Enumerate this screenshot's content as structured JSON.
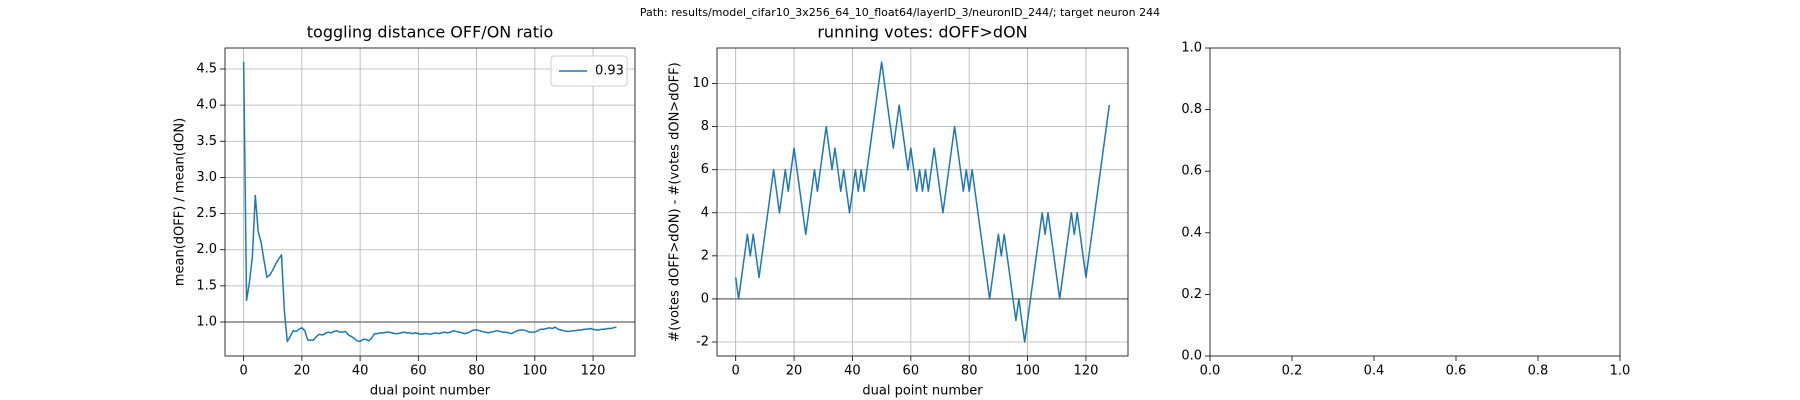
{
  "title": "Path: results/model_cifar10_3x256_64_10_float64/layerID_3/neuronID_244/; target neuron 244",
  "chart_data": [
    {
      "type": "line",
      "title": "toggling distance OFF/ON ratio",
      "xlabel": "dual point number",
      "ylabel": "mean(dOFF) / mean(dON)",
      "x": [
        0,
        1,
        2,
        3,
        4,
        5,
        6,
        7,
        8,
        9,
        10,
        11,
        12,
        13,
        14,
        15,
        16,
        17,
        18,
        19,
        20,
        21,
        22,
        23,
        24,
        25,
        26,
        27,
        28,
        29,
        30,
        31,
        32,
        33,
        34,
        35,
        36,
        37,
        38,
        39,
        40,
        41,
        42,
        43,
        44,
        45,
        46,
        47,
        48,
        49,
        50,
        51,
        52,
        53,
        54,
        55,
        56,
        57,
        58,
        59,
        60,
        61,
        62,
        63,
        64,
        65,
        66,
        67,
        68,
        69,
        70,
        71,
        72,
        73,
        74,
        75,
        76,
        77,
        78,
        79,
        80,
        81,
        82,
        83,
        84,
        85,
        86,
        87,
        88,
        89,
        90,
        91,
        92,
        93,
        94,
        95,
        96,
        97,
        98,
        99,
        100,
        101,
        102,
        103,
        104,
        105,
        106,
        107,
        108,
        109,
        110,
        111,
        112,
        113,
        114,
        115,
        116,
        117,
        118,
        119,
        120,
        121,
        122,
        123,
        124,
        125,
        126,
        127,
        128
      ],
      "series": [
        {
          "name": "0.93",
          "color": "#1f77b4",
          "values": [
            4.6,
            1.3,
            1.55,
            1.9,
            2.75,
            2.25,
            2.1,
            1.85,
            1.62,
            1.65,
            1.72,
            1.8,
            1.87,
            1.93,
            1.15,
            0.73,
            0.8,
            0.88,
            0.87,
            0.9,
            0.92,
            0.88,
            0.75,
            0.75,
            0.75,
            0.8,
            0.83,
            0.82,
            0.84,
            0.86,
            0.85,
            0.87,
            0.88,
            0.86,
            0.86,
            0.87,
            0.82,
            0.8,
            0.77,
            0.74,
            0.73,
            0.76,
            0.76,
            0.74,
            0.78,
            0.84,
            0.84,
            0.85,
            0.85,
            0.86,
            0.86,
            0.85,
            0.84,
            0.84,
            0.85,
            0.86,
            0.85,
            0.85,
            0.84,
            0.85,
            0.84,
            0.83,
            0.84,
            0.84,
            0.83,
            0.84,
            0.85,
            0.84,
            0.85,
            0.86,
            0.85,
            0.86,
            0.88,
            0.87,
            0.86,
            0.85,
            0.84,
            0.85,
            0.87,
            0.89,
            0.89,
            0.88,
            0.87,
            0.86,
            0.85,
            0.86,
            0.87,
            0.88,
            0.87,
            0.86,
            0.86,
            0.85,
            0.84,
            0.86,
            0.88,
            0.89,
            0.89,
            0.88,
            0.86,
            0.86,
            0.86,
            0.88,
            0.9,
            0.9,
            0.91,
            0.92,
            0.91,
            0.93,
            0.9,
            0.89,
            0.88,
            0.87,
            0.87,
            0.88,
            0.88,
            0.89,
            0.89,
            0.9,
            0.9,
            0.91,
            0.9,
            0.89,
            0.89,
            0.9,
            0.9,
            0.91,
            0.91,
            0.92,
            0.93
          ]
        }
      ],
      "hline": 1,
      "legend": "upper right",
      "grid": true,
      "xlim": [
        -6.4,
        134.4
      ],
      "xticks": [
        0,
        20,
        40,
        60,
        80,
        100,
        120
      ],
      "ylim": [
        0.53,
        4.79
      ],
      "yticks": [
        {
          "value": 1,
          "label": "1.0"
        },
        {
          "value": 1.5,
          "label": "1.5"
        },
        {
          "value": 2,
          "label": "2.0"
        },
        {
          "value": 2.5,
          "label": "2.5"
        },
        {
          "value": 3,
          "label": "3.0"
        },
        {
          "value": 3.5,
          "label": "3.5"
        },
        {
          "value": 4,
          "label": "4.0"
        },
        {
          "value": 4.5,
          "label": "4.5"
        }
      ]
    },
    {
      "type": "line",
      "title": "running votes: dOFF>dON",
      "xlabel": "dual point number",
      "ylabel": "#(votes dOFF>dON) - #(votes dON>dOFF)",
      "x": [
        0,
        1,
        2,
        3,
        4,
        5,
        6,
        7,
        8,
        9,
        10,
        11,
        12,
        13,
        14,
        15,
        16,
        17,
        18,
        19,
        20,
        21,
        22,
        23,
        24,
        25,
        26,
        27,
        28,
        29,
        30,
        31,
        32,
        33,
        34,
        35,
        36,
        37,
        38,
        39,
        40,
        41,
        42,
        43,
        44,
        45,
        46,
        47,
        48,
        49,
        50,
        51,
        52,
        53,
        54,
        55,
        56,
        57,
        58,
        59,
        60,
        61,
        62,
        63,
        64,
        65,
        66,
        67,
        68,
        69,
        70,
        71,
        72,
        73,
        74,
        75,
        76,
        77,
        78,
        79,
        80,
        81,
        82,
        83,
        84,
        85,
        86,
        87,
        88,
        89,
        90,
        91,
        92,
        93,
        94,
        95,
        96,
        97,
        98,
        99,
        100,
        101,
        102,
        103,
        104,
        105,
        106,
        107,
        108,
        109,
        110,
        111,
        112,
        113,
        114,
        115,
        116,
        117,
        118,
        119,
        120,
        121,
        122,
        123,
        124,
        125,
        126,
        127,
        128
      ],
      "color": "#1f77b4",
      "values": [
        1,
        0,
        1,
        2,
        3,
        2,
        3,
        2,
        1,
        2,
        3,
        4,
        5,
        6,
        5,
        4,
        5,
        6,
        5,
        6,
        7,
        6,
        5,
        4,
        3,
        4,
        5,
        6,
        5,
        6,
        7,
        8,
        7,
        6,
        7,
        6,
        5,
        6,
        5,
        4,
        5,
        6,
        5,
        6,
        5,
        6,
        7,
        8,
        9,
        10,
        11,
        10,
        9,
        8,
        7,
        8,
        9,
        8,
        7,
        6,
        7,
        6,
        5,
        6,
        5,
        6,
        5,
        6,
        7,
        6,
        5,
        4,
        5,
        6,
        7,
        8,
        7,
        6,
        5,
        6,
        5,
        6,
        5,
        4,
        3,
        2,
        1,
        0,
        1,
        2,
        3,
        2,
        3,
        2,
        1,
        0,
        -1,
        0,
        -1,
        -2,
        -1,
        0,
        1,
        2,
        3,
        4,
        3,
        4,
        3,
        2,
        1,
        0,
        1,
        2,
        3,
        4,
        3,
        4,
        3,
        2,
        1,
        2,
        3,
        4,
        5,
        6,
        7,
        8,
        9
      ],
      "hline": 0,
      "grid": true,
      "xlim": [
        -6.4,
        134.4
      ],
      "xticks": [
        0,
        20,
        40,
        60,
        80,
        100,
        120
      ],
      "ylim": [
        -2.65,
        11.65
      ],
      "yticks": [
        -2,
        0,
        2,
        4,
        6,
        8,
        10
      ]
    },
    {
      "type": "empty",
      "xlim": [
        0,
        1
      ],
      "xticks": [
        {
          "value": 0,
          "label": "0.0"
        },
        {
          "value": 0.2,
          "label": "0.2"
        },
        {
          "value": 0.4,
          "label": "0.4"
        },
        {
          "value": 0.6,
          "label": "0.6"
        },
        {
          "value": 0.8,
          "label": "0.8"
        },
        {
          "value": 1,
          "label": "1.0"
        }
      ],
      "ylim": [
        0,
        1
      ],
      "yticks": [
        {
          "value": 0,
          "label": "0.0"
        },
        {
          "value": 0.2,
          "label": "0.2"
        },
        {
          "value": 0.4,
          "label": "0.4"
        },
        {
          "value": 0.6,
          "label": "0.6"
        },
        {
          "value": 0.8,
          "label": "0.8"
        },
        {
          "value": 1,
          "label": "1.0"
        }
      ]
    }
  ]
}
